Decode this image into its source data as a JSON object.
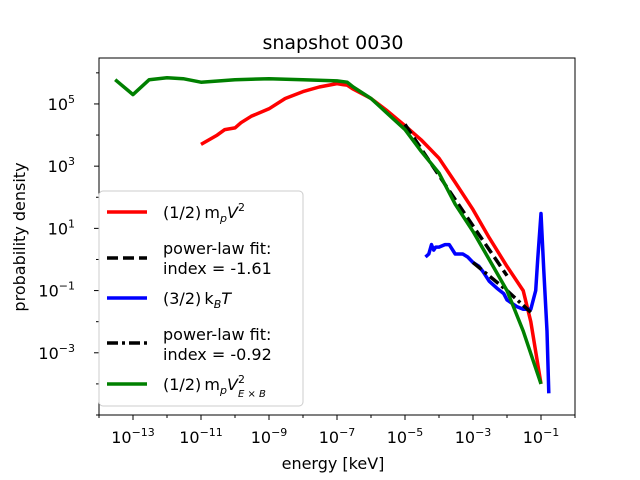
{
  "chart_data": {
    "type": "line",
    "title": "snapshot 0030",
    "xlabel": "energy [keV]",
    "ylabel": "probability density",
    "xscale": "log",
    "yscale": "log",
    "xlim": [
      1e-14,
      1.0
    ],
    "ylim": [
      1e-05,
      3000000.0
    ],
    "grid": false,
    "legend_position": "lower-left",
    "xticks": [
      {
        "value": 1e-13,
        "base": "10",
        "exp": "−13"
      },
      {
        "value": 1e-11,
        "base": "10",
        "exp": "−11"
      },
      {
        "value": 1e-09,
        "base": "10",
        "exp": "−9"
      },
      {
        "value": 1e-07,
        "base": "10",
        "exp": "−7"
      },
      {
        "value": 1e-05,
        "base": "10",
        "exp": "−5"
      },
      {
        "value": 0.001,
        "base": "10",
        "exp": "−3"
      },
      {
        "value": 0.1,
        "base": "10",
        "exp": "−1"
      }
    ],
    "yticks": [
      {
        "value": 0.001,
        "base": "10",
        "exp": "−3"
      },
      {
        "value": 0.1,
        "base": "10",
        "exp": "−1"
      },
      {
        "value": 10,
        "base": "10",
        "exp": "1"
      },
      {
        "value": 1000.0,
        "base": "10",
        "exp": "3"
      },
      {
        "value": 100000.0,
        "base": "10",
        "exp": "5"
      }
    ],
    "series": [
      {
        "name": "(1/2) m_p V^2",
        "color": "#ff0000",
        "style": "solid",
        "x": [
          1e-11,
          3e-11,
          5e-11,
          1e-10,
          1.5e-10,
          3e-10,
          1e-09,
          3e-09,
          1e-08,
          3e-08,
          1e-07,
          1.5e-07,
          2e-07,
          3e-07,
          1e-06,
          3e-06,
          1e-05,
          3e-05,
          0.0001,
          0.0003,
          0.001,
          0.003,
          0.01,
          0.03,
          0.05,
          0.1
        ],
        "y": [
          5000,
          10000,
          15000,
          17000,
          25000,
          40000,
          70000,
          150000,
          250000,
          350000,
          450000,
          420000,
          400000,
          300000,
          150000,
          60000,
          20000,
          7000,
          1800,
          300,
          40,
          5,
          0.6,
          0.1,
          0.01,
          0.0001
        ]
      },
      {
        "name": "power-law fit: index = -1.61",
        "color": "#000000",
        "style": "dashed",
        "x": [
          1e-05,
          0.0001,
          0.001,
          0.01
        ],
        "y": [
          22000,
          500,
          12,
          0.3
        ]
      },
      {
        "name": "(3/2) k_B T",
        "color": "#0000ff",
        "style": "solid",
        "x": [
          4e-05,
          5e-05,
          6e-05,
          7e-05,
          8e-05,
          0.0001,
          0.00015,
          0.0002,
          0.0003,
          0.0005,
          0.0007,
          0.001,
          0.0015,
          0.002,
          0.003,
          0.005,
          0.008,
          0.01,
          0.02,
          0.03,
          0.05,
          0.07,
          0.08,
          0.1,
          0.12,
          0.15,
          0.17
        ],
        "y": [
          1.2,
          1.5,
          3,
          2,
          2.5,
          2.5,
          3,
          3,
          1.5,
          1.5,
          1.2,
          0.8,
          0.6,
          0.4,
          0.2,
          0.12,
          0.08,
          0.05,
          0.03,
          0.025,
          0.025,
          0.1,
          1,
          30,
          0.5,
          0.005,
          5e-05
        ]
      },
      {
        "name": "power-law fit: index = -0.92",
        "color": "#000000",
        "style": "dashdot",
        "x": [
          0.001,
          0.01,
          0.05
        ],
        "y": [
          0.8,
          0.1,
          0.02
        ]
      },
      {
        "name": "(1/2) m_p V_ExB^2",
        "color": "#008000",
        "style": "solid",
        "x": [
          3e-14,
          1e-13,
          3e-13,
          1e-12,
          3e-12,
          1e-11,
          1e-10,
          1e-09,
          1e-08,
          1e-07,
          2e-07,
          3e-07,
          1e-06,
          3e-06,
          1e-05,
          3e-05,
          0.0001,
          0.0003,
          0.001,
          0.003,
          0.01,
          0.03,
          0.1
        ],
        "y": [
          600000,
          200000,
          600000,
          700000,
          650000,
          500000,
          600000,
          650000,
          600000,
          550000,
          500000,
          350000,
          150000,
          50000,
          15000,
          3000,
          600,
          60,
          8,
          1,
          0.1,
          0.005,
          0.0001
        ]
      }
    ],
    "legend": [
      {
        "series": 0,
        "text": "(1/2) m",
        "sub": "p",
        "text2": "V",
        "sup": "2"
      },
      {
        "series": 1,
        "line1": "power-law fit:",
        "line2": "index = -1.61"
      },
      {
        "series": 2,
        "text": "(3/2) k",
        "sub": "B",
        "text2": "T"
      },
      {
        "series": 3,
        "line1": "power-law fit:",
        "line2": "index = -0.92"
      },
      {
        "series": 4,
        "text": "(1/2) m",
        "sub": "p",
        "text2": "V",
        "supsub": "2",
        "subsub": "E × B"
      }
    ]
  }
}
